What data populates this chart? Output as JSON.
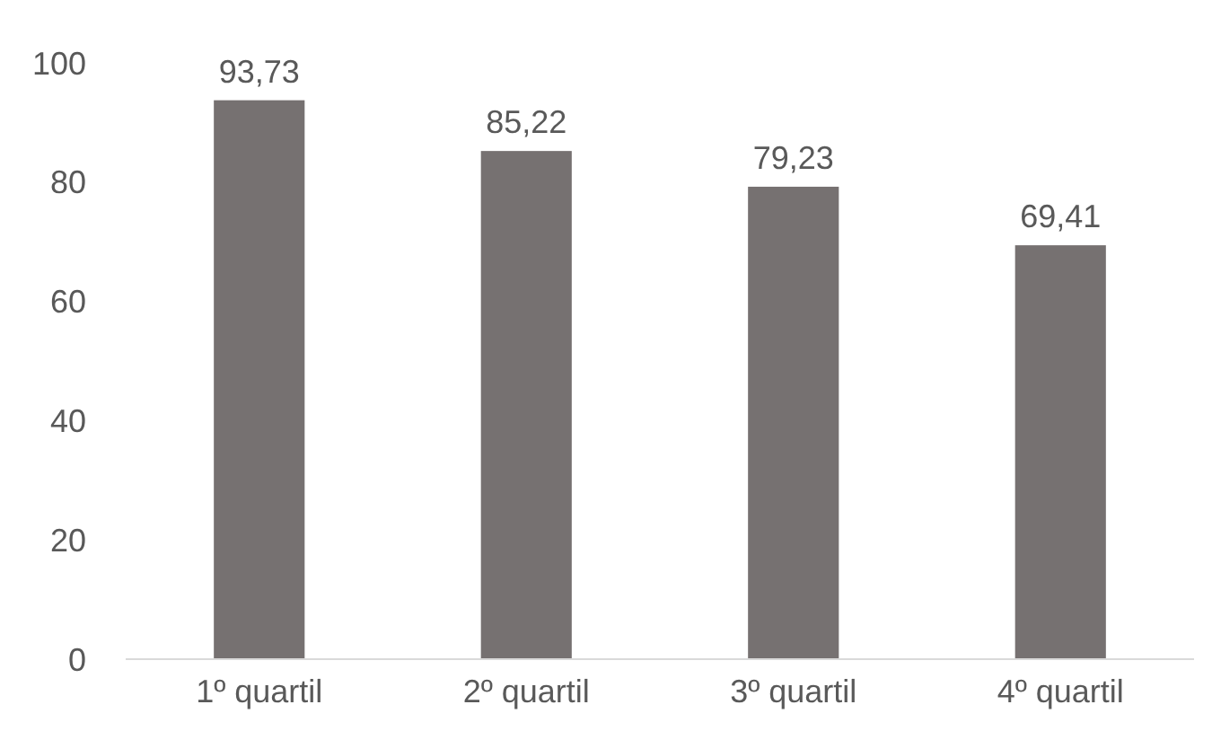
{
  "chart_data": {
    "type": "bar",
    "categories": [
      "1º quartil",
      "2º quartil",
      "3º quartil",
      "4º quartil"
    ],
    "values": [
      93.73,
      85.22,
      79.23,
      69.41
    ],
    "value_labels": [
      "93,73",
      "85,22",
      "79,23",
      "69,41"
    ],
    "color": "#767171",
    "ylim": [
      0,
      100
    ],
    "yticks": [
      0,
      20,
      40,
      60,
      80,
      100
    ],
    "grid": false
  }
}
